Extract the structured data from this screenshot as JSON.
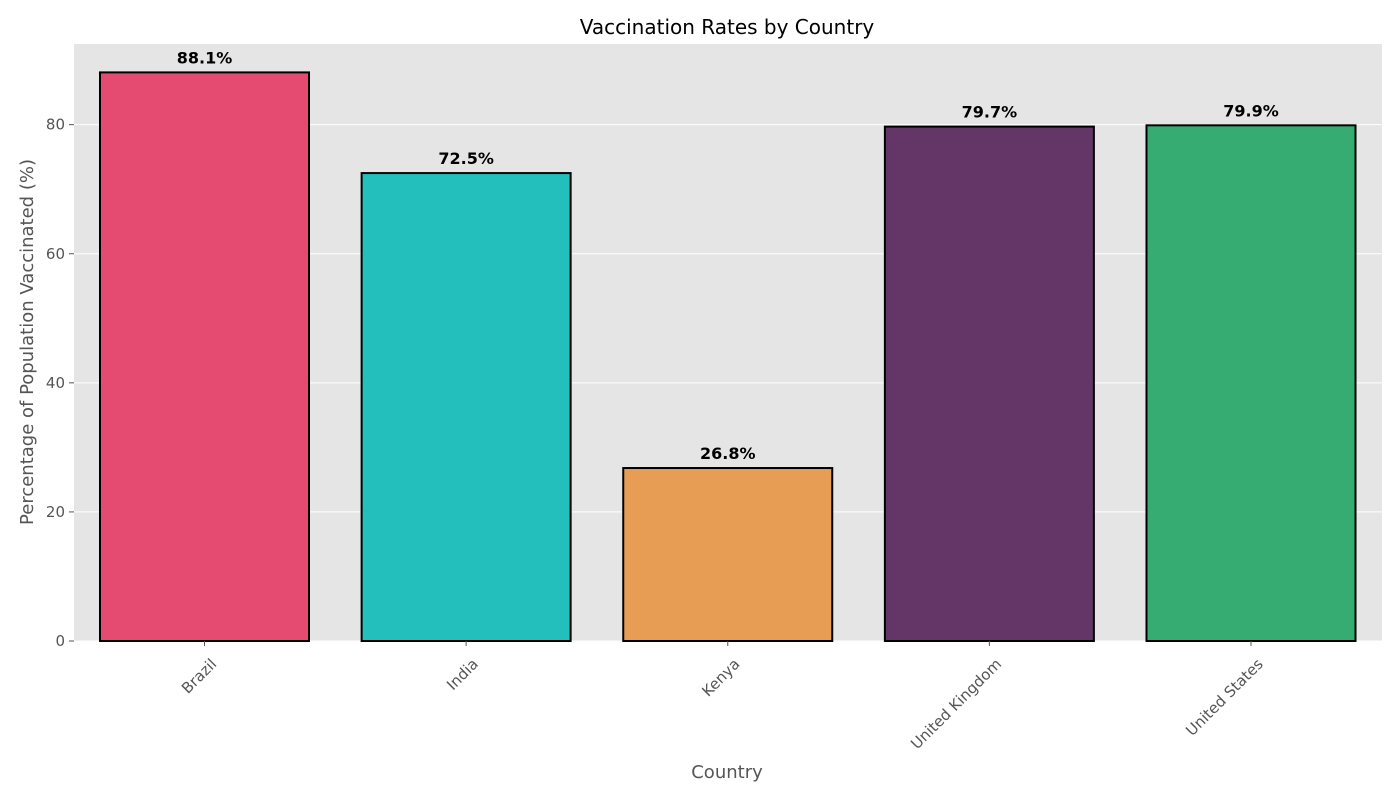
{
  "chart_data": {
    "type": "bar",
    "title": "Vaccination Rates by Country",
    "xlabel": "Country",
    "ylabel": "Percentage of Population Vaccinated (%)",
    "categories": [
      "Brazil",
      "India",
      "Kenya",
      "United Kingdom",
      "United States"
    ],
    "values": [
      88.1,
      72.5,
      26.8,
      79.7,
      79.9
    ],
    "value_labels": [
      "88.1%",
      "72.5%",
      "26.8%",
      "79.7%",
      "79.9%"
    ],
    "colors": [
      "#e54b71",
      "#22bfbc",
      "#e89d55",
      "#643668",
      "#36ab72"
    ],
    "ylim": [
      0,
      92.5
    ],
    "yticks": [
      0,
      20,
      40,
      60,
      80
    ],
    "ytick_labels": [
      "0",
      "20",
      "40",
      "60",
      "80"
    ],
    "grid": true,
    "background": "#e5e5e5",
    "edge_color": "#000000",
    "x_tick_rotation": "45 degrees"
  }
}
